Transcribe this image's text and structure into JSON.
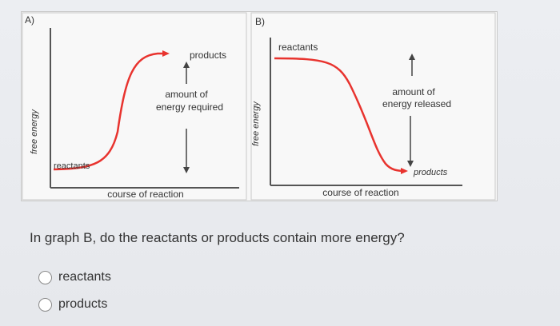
{
  "graph_a": {
    "label": "A)",
    "ylabel": "free energy",
    "xlabel": "course of reaction",
    "reactants_label": "reactants",
    "products_label": "products",
    "annotation": [
      "amount of",
      "energy required"
    ]
  },
  "graph_b": {
    "label": "B)",
    "ylabel": "free energy",
    "xlabel": "course of reaction",
    "reactants_label": "reactants",
    "products_label": "products",
    "annotation": [
      "amount of",
      "energy released"
    ]
  },
  "question": {
    "text": "In graph B, do the reactants or products contain more energy?",
    "options": [
      "reactants",
      "products"
    ]
  },
  "colors": {
    "curve": "#e8332e",
    "axis": "#555555",
    "arrow": "#444444"
  }
}
